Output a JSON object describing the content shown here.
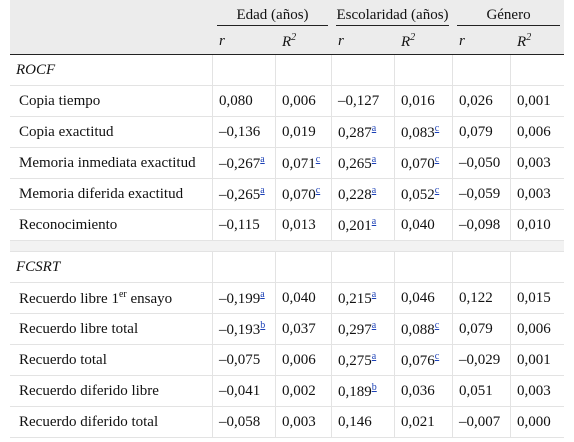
{
  "header": {
    "groups": [
      "Edad (años)",
      "Escolaridad (años)",
      "Género"
    ],
    "sub": [
      "r",
      "R",
      "r",
      "R",
      "r",
      "R"
    ],
    "sub_sup": [
      "",
      "2",
      "",
      "2",
      "",
      "2"
    ]
  },
  "sections": [
    {
      "title": "ROCF",
      "rows": [
        {
          "label": "Copia tiempo",
          "label_sup": "",
          "label_suffix": "",
          "cells": [
            {
              "v": "0,080",
              "s": ""
            },
            {
              "v": "0,006",
              "s": ""
            },
            {
              "v": "–0,127",
              "s": ""
            },
            {
              "v": "0,016",
              "s": ""
            },
            {
              "v": "0,026",
              "s": ""
            },
            {
              "v": "0,001",
              "s": ""
            }
          ]
        },
        {
          "label": "Copia exactitud",
          "label_sup": "",
          "label_suffix": "",
          "cells": [
            {
              "v": "–0,136",
              "s": ""
            },
            {
              "v": "0,019",
              "s": ""
            },
            {
              "v": "0,287",
              "s": "a"
            },
            {
              "v": "0,083",
              "s": "c"
            },
            {
              "v": "0,079",
              "s": ""
            },
            {
              "v": "0,006",
              "s": ""
            }
          ]
        },
        {
          "label": "Memoria inmediata exactitud",
          "label_sup": "",
          "label_suffix": "",
          "cells": [
            {
              "v": "–0,267",
              "s": "a"
            },
            {
              "v": "0,071",
              "s": "c"
            },
            {
              "v": "0,265",
              "s": "a"
            },
            {
              "v": "0,070",
              "s": "c"
            },
            {
              "v": "–0,050",
              "s": ""
            },
            {
              "v": "0,003",
              "s": ""
            }
          ]
        },
        {
          "label": "Memoria diferida exactitud",
          "label_sup": "",
          "label_suffix": "",
          "cells": [
            {
              "v": "–0,265",
              "s": "a"
            },
            {
              "v": "0,070",
              "s": "c"
            },
            {
              "v": "0,228",
              "s": "a"
            },
            {
              "v": "0,052",
              "s": "c"
            },
            {
              "v": "–0,059",
              "s": ""
            },
            {
              "v": "0,003",
              "s": ""
            }
          ]
        },
        {
          "label": "Reconocimiento",
          "label_sup": "",
          "label_suffix": "",
          "cells": [
            {
              "v": "–0,115",
              "s": ""
            },
            {
              "v": "0,013",
              "s": ""
            },
            {
              "v": "0,201",
              "s": "a"
            },
            {
              "v": "0,040",
              "s": ""
            },
            {
              "v": "–0,098",
              "s": ""
            },
            {
              "v": "0,010",
              "s": ""
            }
          ]
        }
      ]
    },
    {
      "title": "FCSRT",
      "rows": [
        {
          "label": "Recuerdo libre 1",
          "label_sup": "er",
          "label_suffix": " ensayo",
          "cells": [
            {
              "v": "–0,199",
              "s": "a"
            },
            {
              "v": "0,040",
              "s": ""
            },
            {
              "v": "0,215",
              "s": "a"
            },
            {
              "v": "0,046",
              "s": ""
            },
            {
              "v": "0,122",
              "s": ""
            },
            {
              "v": "0,015",
              "s": ""
            }
          ]
        },
        {
          "label": "Recuerdo libre total",
          "label_sup": "",
          "label_suffix": "",
          "cells": [
            {
              "v": "–0,193",
              "s": "b"
            },
            {
              "v": "0,037",
              "s": ""
            },
            {
              "v": "0,297",
              "s": "a"
            },
            {
              "v": "0,088",
              "s": "c"
            },
            {
              "v": "0,079",
              "s": ""
            },
            {
              "v": "0,006",
              "s": ""
            }
          ]
        },
        {
          "label": "Recuerdo total",
          "label_sup": "",
          "label_suffix": "",
          "cells": [
            {
              "v": "–0,075",
              "s": ""
            },
            {
              "v": "0,006",
              "s": ""
            },
            {
              "v": "0,275",
              "s": "a"
            },
            {
              "v": "0,076",
              "s": "c"
            },
            {
              "v": "–0,029",
              "s": ""
            },
            {
              "v": "0,001",
              "s": ""
            }
          ]
        },
        {
          "label": "Recuerdo diferido libre",
          "label_sup": "",
          "label_suffix": "",
          "cells": [
            {
              "v": "–0,041",
              "s": ""
            },
            {
              "v": "0,002",
              "s": ""
            },
            {
              "v": "0,189",
              "s": "b"
            },
            {
              "v": "0,036",
              "s": ""
            },
            {
              "v": "0,051",
              "s": ""
            },
            {
              "v": "0,003",
              "s": ""
            }
          ]
        },
        {
          "label": "Recuerdo diferido total",
          "label_sup": "",
          "label_suffix": "",
          "cells": [
            {
              "v": "–0,058",
              "s": ""
            },
            {
              "v": "0,003",
              "s": ""
            },
            {
              "v": "0,146",
              "s": ""
            },
            {
              "v": "0,021",
              "s": ""
            },
            {
              "v": "–0,007",
              "s": ""
            },
            {
              "v": "0,000",
              "s": ""
            }
          ]
        }
      ]
    }
  ]
}
